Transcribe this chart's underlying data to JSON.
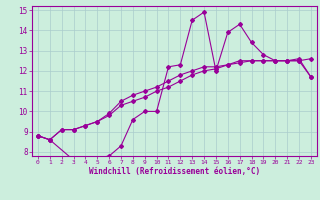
{
  "xlabel": "Windchill (Refroidissement éolien,°C)",
  "bg_color": "#cceedd",
  "line_color": "#990099",
  "xlim": [
    -0.5,
    23.5
  ],
  "ylim": [
    7.8,
    15.2
  ],
  "xticks": [
    0,
    1,
    2,
    3,
    4,
    5,
    6,
    7,
    8,
    9,
    10,
    11,
    12,
    13,
    14,
    15,
    16,
    17,
    18,
    19,
    20,
    21,
    22,
    23
  ],
  "yticks": [
    8,
    9,
    10,
    11,
    12,
    13,
    14,
    15
  ],
  "grid_color": "#aacccc",
  "line1_x": [
    0,
    1,
    3,
    4,
    5,
    6,
    7,
    8,
    9,
    10,
    11,
    12,
    13,
    14,
    15,
    16,
    17,
    18,
    19,
    20,
    21,
    22,
    23
  ],
  "line1_y": [
    8.8,
    8.6,
    7.6,
    7.7,
    7.7,
    7.8,
    8.3,
    9.6,
    10.0,
    10.0,
    12.2,
    12.3,
    14.5,
    14.9,
    12.0,
    13.9,
    14.3,
    13.4,
    12.8,
    12.5,
    12.5,
    12.5,
    12.6
  ],
  "line2_x": [
    0,
    1,
    2,
    3,
    4,
    5,
    6,
    7,
    8,
    9,
    10,
    11,
    12,
    13,
    14,
    15,
    16,
    17,
    18,
    19,
    20,
    21,
    22,
    23
  ],
  "line2_y": [
    8.8,
    8.6,
    9.1,
    9.1,
    9.3,
    9.5,
    9.8,
    10.3,
    10.5,
    10.7,
    11.0,
    11.2,
    11.5,
    11.8,
    12.0,
    12.1,
    12.3,
    12.4,
    12.5,
    12.5,
    12.5,
    12.5,
    12.5,
    11.7
  ],
  "line3_x": [
    0,
    1,
    2,
    3,
    4,
    5,
    6,
    7,
    8,
    9,
    10,
    11,
    12,
    13,
    14,
    15,
    16,
    17,
    18,
    19,
    20,
    21,
    22,
    23
  ],
  "line3_y": [
    8.8,
    8.6,
    9.1,
    9.1,
    9.3,
    9.5,
    9.9,
    10.5,
    10.8,
    11.0,
    11.2,
    11.5,
    11.8,
    12.0,
    12.2,
    12.2,
    12.3,
    12.5,
    12.5,
    12.5,
    12.5,
    12.5,
    12.6,
    11.7
  ]
}
